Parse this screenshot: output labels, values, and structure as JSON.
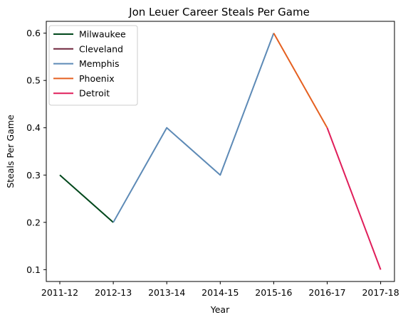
{
  "chart_data": {
    "type": "line",
    "title": "Jon Leuer Career Steals Per Game",
    "xlabel": "Year",
    "ylabel": "Steals Per Game",
    "categories": [
      "2011-12",
      "2012-13",
      "2013-14",
      "2014-15",
      "2015-16",
      "2016-17",
      "2017-18"
    ],
    "yticks": [
      0.1,
      0.2,
      0.3,
      0.4,
      0.5,
      0.6
    ],
    "ylim": [
      0.075,
      0.625
    ],
    "grid": false,
    "legend_position": "top-left",
    "series": [
      {
        "name": "Milwaukee",
        "color": "#00471B",
        "points": [
          [
            "2011-12",
            0.3
          ],
          [
            "2012-13",
            0.2
          ]
        ]
      },
      {
        "name": "Cleveland",
        "color": "#6F263D",
        "points": []
      },
      {
        "name": "Memphis",
        "color": "#5D8AB6",
        "points": [
          [
            "2012-13",
            0.2
          ],
          [
            "2013-14",
            0.4
          ],
          [
            "2014-15",
            0.3
          ],
          [
            "2015-16",
            0.6
          ]
        ]
      },
      {
        "name": "Phoenix",
        "color": "#E56020",
        "points": [
          [
            "2015-16",
            0.6
          ],
          [
            "2016-17",
            0.4
          ]
        ]
      },
      {
        "name": "Detroit",
        "color": "#E01E5A",
        "points": [
          [
            "2016-17",
            0.4
          ],
          [
            "2017-18",
            0.1
          ]
        ]
      }
    ]
  }
}
